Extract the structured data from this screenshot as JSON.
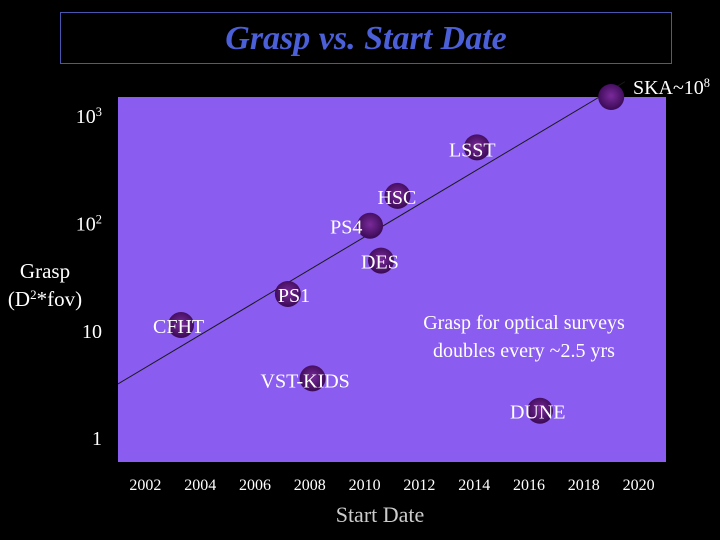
{
  "title": "Grasp vs. Start Date",
  "colors": {
    "plot_bg": "#8a5cf0",
    "title": "#4a5fd8",
    "point": "#5a1a7a",
    "trend_line": "#1a1a1a"
  },
  "chart_data": {
    "type": "scatter",
    "title": "Grasp vs. Start Date",
    "xlabel": "Start Date",
    "ylabel": {
      "main": "Grasp",
      "unit_base": "(D",
      "unit_sup": "2",
      "unit_rest": "*fov)"
    },
    "yscale": "log",
    "xlim": [
      2001,
      2021
    ],
    "ylim": [
      0.6,
      1500
    ],
    "x_ticks": [
      2002,
      2004,
      2006,
      2008,
      2010,
      2012,
      2014,
      2016,
      2018,
      2020
    ],
    "y_ticks": [
      {
        "value": 1,
        "base": "1",
        "sup": ""
      },
      {
        "value": 10,
        "base": "10",
        "sup": ""
      },
      {
        "value": 100,
        "base": "10",
        "sup": "2"
      },
      {
        "value": 1000,
        "base": "10",
        "sup": "3"
      }
    ],
    "grid": false,
    "points": [
      {
        "label": "CFHT",
        "x": 2003.3,
        "y": 11.3
      },
      {
        "label": "PS1",
        "x": 2007.2,
        "y": 22
      },
      {
        "label": "VST-KIDS",
        "x": 2008.1,
        "y": 3.6
      },
      {
        "label": "PS4",
        "x": 2010.2,
        "y": 95
      },
      {
        "label": "DES",
        "x": 2010.6,
        "y": 45
      },
      {
        "label": "HSC",
        "x": 2011.2,
        "y": 180
      },
      {
        "label": "LSST",
        "x": 2014.1,
        "y": 510
      },
      {
        "label": "DUNE",
        "x": 2016.4,
        "y": 1.8
      },
      {
        "label": "SKA",
        "x": 2019.0,
        "y": 1500,
        "annotation_base": "SKA~10",
        "annotation_sup": "8"
      }
    ],
    "trend_line": {
      "x": [
        2001,
        2019.5
      ],
      "y": [
        3.2,
        2080
      ]
    },
    "annotation": [
      "Grasp for optical surveys",
      "doubles every ~2.5 yrs"
    ]
  }
}
